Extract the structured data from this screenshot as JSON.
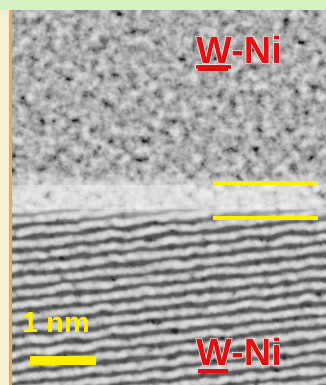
{
  "labels": {
    "top_phase": {
      "underlined": "W",
      "rest": "-Ni"
    },
    "bottom_phase": {
      "underlined": "W",
      "rest": "-Ni"
    },
    "scale_bar": "1 nm"
  }
}
